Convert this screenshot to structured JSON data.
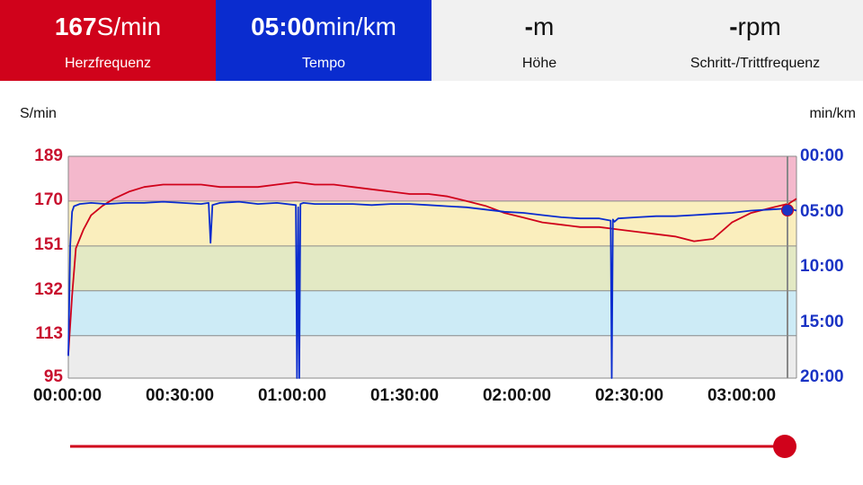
{
  "tiles": [
    {
      "value_bold": "167",
      "value_unit": "S/min",
      "label": "Herzfrequenz",
      "color": "#d0021b"
    },
    {
      "value_bold": "05:00",
      "value_unit": "min/km",
      "label": "Tempo",
      "color": "#0a2ccf"
    },
    {
      "value_bold": "-",
      "value_unit": "m",
      "label": "Höhe",
      "color": "#f1f1f1"
    },
    {
      "value_bold": "-",
      "value_unit": "rpm",
      "label": "Schritt-/Trittfrequenz",
      "color": "#f1f1f1"
    }
  ],
  "chart_data": {
    "type": "line",
    "y_left_unit": "S/min",
    "y_right_unit": "min/km",
    "y_left_ticks": [
      "189",
      "170",
      "151",
      "132",
      "113",
      "95"
    ],
    "y_right_ticks": [
      "00:00",
      "05:00",
      "10:00",
      "15:00",
      "20:00"
    ],
    "x_ticks": [
      "00:00:00",
      "00:30:00",
      "01:00:00",
      "01:30:00",
      "02:00:00",
      "02:30:00",
      "03:00:00"
    ],
    "x_range_minutes": [
      0,
      192
    ],
    "y_left_range": [
      95,
      189
    ],
    "y_right_range_minutes": [
      0,
      20
    ],
    "zones": [
      {
        "from": 170,
        "to": 189,
        "color": "#f4b8cc"
      },
      {
        "from": 151,
        "to": 170,
        "color": "#faeebd"
      },
      {
        "from": 132,
        "to": 151,
        "color": "#e3e9c4"
      },
      {
        "from": 113,
        "to": 132,
        "color": "#cdebf6"
      },
      {
        "from": 95,
        "to": 113,
        "color": "#ececec"
      }
    ],
    "series": [
      {
        "axis": "left",
        "color": "#d0021b",
        "x": [
          0,
          1,
          2,
          4,
          6,
          9,
          12,
          16,
          20,
          25,
          30,
          35,
          40,
          45,
          50,
          55,
          60,
          65,
          70,
          75,
          80,
          85,
          90,
          95,
          100,
          105,
          110,
          115,
          120,
          125,
          130,
          135,
          140,
          145,
          150,
          155,
          160,
          165,
          170,
          175,
          180,
          185,
          190,
          192
        ],
        "y": [
          105,
          130,
          150,
          158,
          164,
          168,
          171,
          174,
          176,
          177,
          177,
          177,
          176,
          176,
          176,
          177,
          178,
          177,
          177,
          176,
          175,
          174,
          173,
          173,
          172,
          170,
          168,
          165,
          163,
          161,
          160,
          159,
          159,
          158,
          157,
          156,
          155,
          153,
          154,
          161,
          165,
          167,
          169,
          171
        ]
      },
      {
        "axis": "right",
        "color": "#0a2ccf",
        "x": [
          0,
          0.5,
          1,
          1.5,
          3,
          6,
          10,
          15,
          20,
          25,
          30,
          35,
          37,
          37.5,
          38,
          40,
          45,
          50,
          55,
          60,
          60.3,
          60.6,
          60.9,
          61.2,
          62,
          65,
          70,
          75,
          80,
          85,
          90,
          95,
          100,
          105,
          110,
          115,
          120,
          125,
          130,
          135,
          140,
          143,
          143.3,
          143.6,
          144,
          145,
          150,
          155,
          160,
          165,
          170,
          175,
          180,
          185,
          190,
          192
        ],
        "y": [
          18,
          8,
          5,
          4.5,
          4.3,
          4.2,
          4.3,
          4.2,
          4.2,
          4.1,
          4.2,
          4.3,
          4.2,
          7.8,
          4.4,
          4.2,
          4.1,
          4.3,
          4.2,
          4.4,
          20,
          4.6,
          20,
          4.3,
          4.2,
          4.3,
          4.3,
          4.3,
          4.4,
          4.3,
          4.3,
          4.4,
          4.5,
          4.6,
          4.8,
          5.0,
          5.1,
          5.3,
          5.5,
          5.6,
          5.6,
          5.8,
          20,
          5.7,
          5.9,
          5.6,
          5.5,
          5.4,
          5.4,
          5.3,
          5.2,
          5.1,
          4.9,
          4.8,
          4.7,
          4.9
        ]
      }
    ],
    "grid": true
  }
}
